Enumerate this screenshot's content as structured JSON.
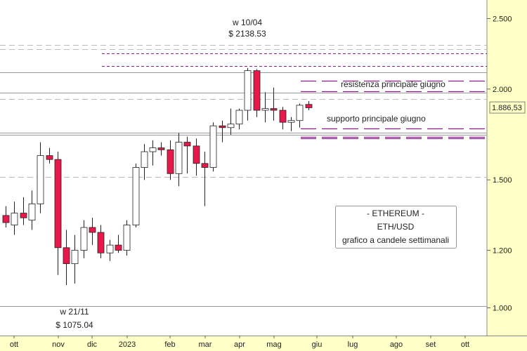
{
  "chart_data": {
    "type": "candlestick",
    "title_box": {
      "line1": "- ETHEREUM -",
      "line2": "ETH/USD",
      "line3": "grafico a candele settimanali"
    },
    "y_scale": "log",
    "ylim": [
      920,
      2640
    ],
    "y_ticks": [
      {
        "value": 2500,
        "label": "2.500"
      },
      {
        "value": 2000,
        "label": "2.000"
      },
      {
        "value": 1500,
        "label": "1.500"
      },
      {
        "value": 1200,
        "label": "1.200"
      },
      {
        "value": 1000,
        "label": "1.000"
      }
    ],
    "x_ticks": [
      "ott",
      "nov",
      "dic",
      "2023",
      "feb",
      "mar",
      "apr",
      "mag",
      "giu",
      "lug",
      "ago",
      "set",
      "ott"
    ],
    "last_price": {
      "value": 1886.53,
      "label": "1.886,53"
    },
    "colors": {
      "up": "#ffffff",
      "down": "#e8194a",
      "wick": "#222222",
      "grid": "#cccccc",
      "purple": "#8b1a8b",
      "axis_bg": "#ffffc8"
    },
    "annotations": {
      "high": {
        "week": "w 10/04",
        "price": "$ 2138.53"
      },
      "low": {
        "week": "w 21/11",
        "price": "$ 1075.04"
      },
      "resistance": "resistenza principale giugno",
      "support": "supporto principale giugno"
    },
    "levels": [
      {
        "value": 2110,
        "style": "solid-gray"
      },
      {
        "value": 1976,
        "style": "solid-gray"
      },
      {
        "value": 1740,
        "style": "solid-gray"
      },
      {
        "value": 1730,
        "style": "solid-gray"
      },
      {
        "value": 2300,
        "style": "dashed-gray"
      },
      {
        "value": 2270,
        "style": "dashed-gray"
      },
      {
        "value": 1005,
        "style": "solid-gray"
      },
      {
        "value": 1515,
        "style": "dashed-gray"
      },
      {
        "value": 2240,
        "style": "dashed-purple"
      },
      {
        "value": 2150,
        "style": "dashed-purple"
      },
      {
        "value": 1940,
        "style": "dashed-gray"
      },
      {
        "value": 2055,
        "style": "longdash-purple"
      },
      {
        "value": 1985,
        "style": "longdash-purple"
      },
      {
        "value": 1765,
        "style": "longdash-purple"
      },
      {
        "value": 1720,
        "style": "longdash-purple"
      },
      {
        "value": 1712,
        "style": "longdash-purple"
      }
    ],
    "candles": [
      {
        "o": 1340,
        "h": 1380,
        "l": 1290,
        "c": 1310
      },
      {
        "o": 1300,
        "h": 1400,
        "l": 1260,
        "c": 1350
      },
      {
        "o": 1350,
        "h": 1420,
        "l": 1300,
        "c": 1330
      },
      {
        "o": 1320,
        "h": 1450,
        "l": 1280,
        "c": 1390
      },
      {
        "o": 1390,
        "h": 1690,
        "l": 1350,
        "c": 1620
      },
      {
        "o": 1620,
        "h": 1660,
        "l": 1580,
        "c": 1600
      },
      {
        "o": 1600,
        "h": 1640,
        "l": 1110,
        "c": 1210
      },
      {
        "o": 1210,
        "h": 1280,
        "l": 1075,
        "c": 1150
      },
      {
        "o": 1150,
        "h": 1260,
        "l": 1080,
        "c": 1200
      },
      {
        "o": 1200,
        "h": 1320,
        "l": 1170,
        "c": 1290
      },
      {
        "o": 1290,
        "h": 1330,
        "l": 1220,
        "c": 1270
      },
      {
        "o": 1270,
        "h": 1300,
        "l": 1170,
        "c": 1190
      },
      {
        "o": 1190,
        "h": 1240,
        "l": 1160,
        "c": 1220
      },
      {
        "o": 1220,
        "h": 1260,
        "l": 1190,
        "c": 1200
      },
      {
        "o": 1200,
        "h": 1320,
        "l": 1180,
        "c": 1300
      },
      {
        "o": 1300,
        "h": 1580,
        "l": 1290,
        "c": 1560
      },
      {
        "o": 1560,
        "h": 1680,
        "l": 1500,
        "c": 1640
      },
      {
        "o": 1640,
        "h": 1700,
        "l": 1570,
        "c": 1660
      },
      {
        "o": 1660,
        "h": 1690,
        "l": 1620,
        "c": 1650
      },
      {
        "o": 1650,
        "h": 1700,
        "l": 1500,
        "c": 1530
      },
      {
        "o": 1530,
        "h": 1740,
        "l": 1470,
        "c": 1690
      },
      {
        "o": 1690,
        "h": 1720,
        "l": 1530,
        "c": 1670
      },
      {
        "o": 1670,
        "h": 1710,
        "l": 1520,
        "c": 1580
      },
      {
        "o": 1580,
        "h": 1640,
        "l": 1380,
        "c": 1560
      },
      {
        "o": 1560,
        "h": 1800,
        "l": 1540,
        "c": 1780
      },
      {
        "o": 1780,
        "h": 1810,
        "l": 1690,
        "c": 1770
      },
      {
        "o": 1770,
        "h": 1880,
        "l": 1730,
        "c": 1790
      },
      {
        "o": 1790,
        "h": 1880,
        "l": 1760,
        "c": 1870
      },
      {
        "o": 1870,
        "h": 2138,
        "l": 1810,
        "c": 2120
      },
      {
        "o": 2120,
        "h": 2130,
        "l": 1830,
        "c": 1870
      },
      {
        "o": 1870,
        "h": 1980,
        "l": 1800,
        "c": 1880
      },
      {
        "o": 1880,
        "h": 2010,
        "l": 1810,
        "c": 1870
      },
      {
        "o": 1870,
        "h": 1890,
        "l": 1760,
        "c": 1800
      },
      {
        "o": 1800,
        "h": 1830,
        "l": 1750,
        "c": 1810
      },
      {
        "o": 1810,
        "h": 1910,
        "l": 1770,
        "c": 1900
      },
      {
        "o": 1905,
        "h": 1925,
        "l": 1870,
        "c": 1885
      }
    ]
  }
}
